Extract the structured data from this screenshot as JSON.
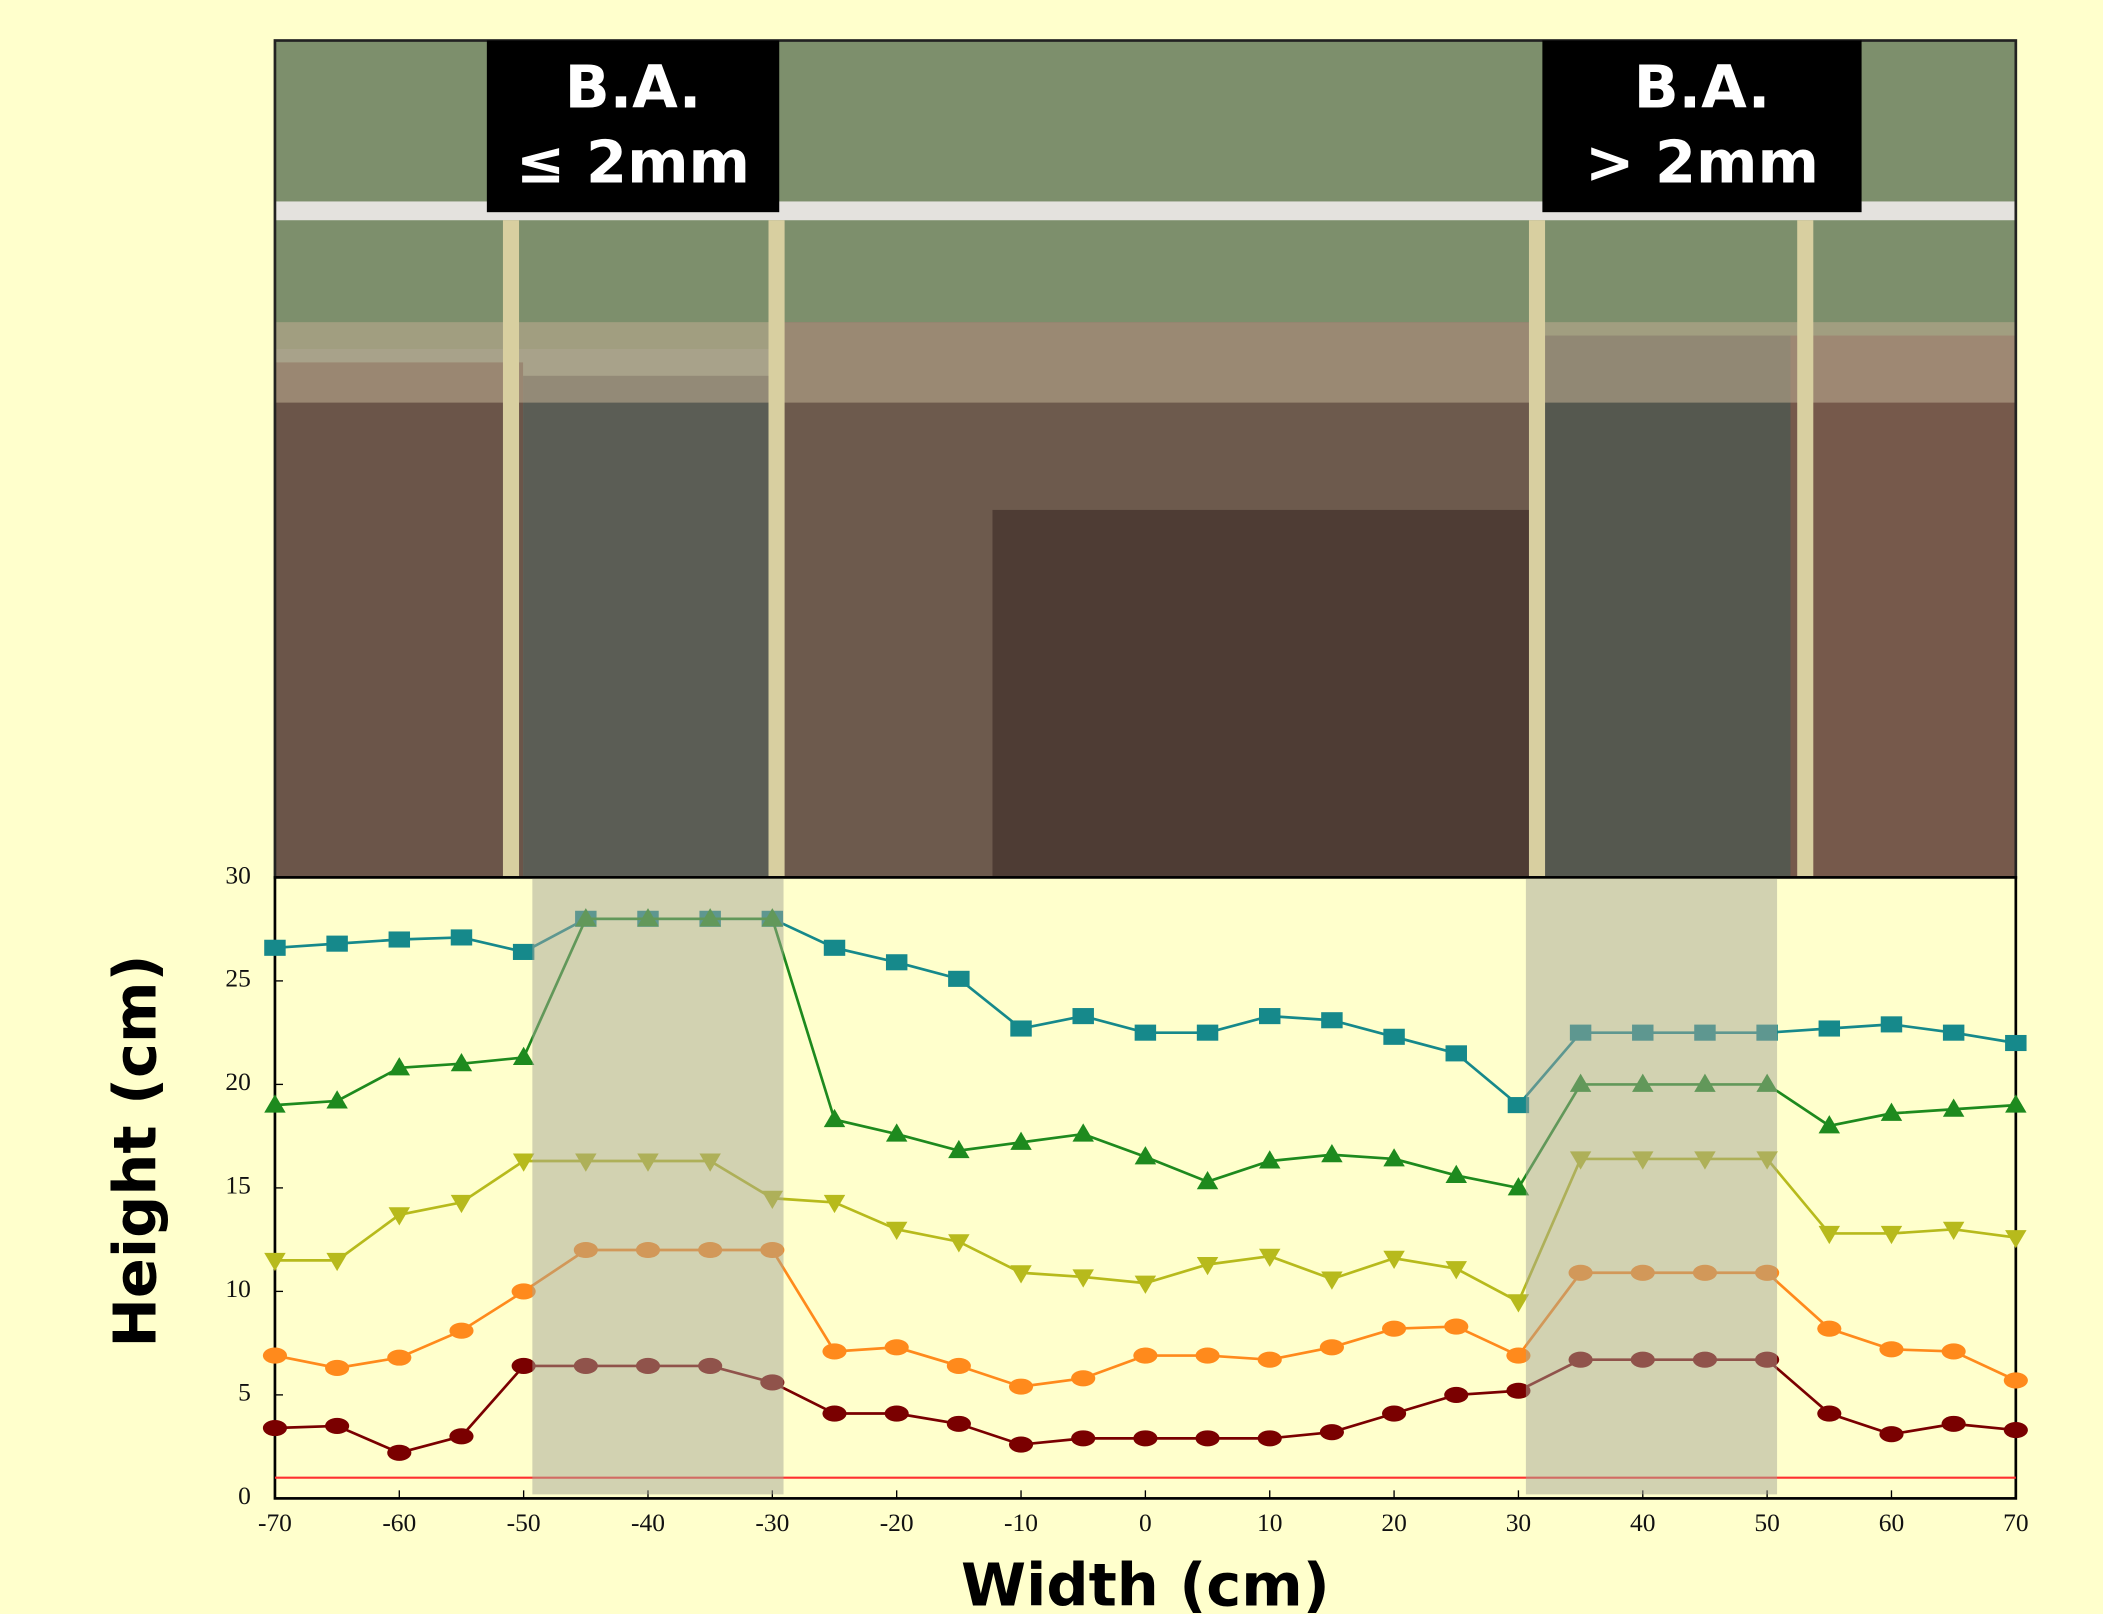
{
  "chart_data": {
    "type": "line",
    "annotations": [
      [
        "B.A.",
        "≤  2mm"
      ],
      [
        "B.A.",
        ">  2mm"
      ]
    ],
    "xlabel": "Width (cm)",
    "ylabel": "Height (cm)",
    "x": [
      -70,
      -65,
      -60,
      -55,
      -50,
      -45,
      -40,
      -35,
      -30,
      -25,
      -20,
      -15,
      -10,
      -5,
      0,
      5,
      10,
      15,
      20,
      25,
      30,
      35,
      40,
      45,
      50,
      55,
      60,
      65,
      70
    ],
    "series": [
      {
        "color": "#16898b",
        "marker": "square",
        "values": [
          26.6,
          26.8,
          27.0,
          27.1,
          26.4,
          28,
          28,
          28,
          28,
          26.6,
          25.9,
          25.1,
          22.7,
          23.3,
          22.5,
          22.5,
          23.3,
          23.1,
          22.3,
          21.5,
          19.0,
          22.5,
          22.5,
          22.5,
          22.5,
          22.7,
          22.9,
          22.5,
          22.0
        ]
      },
      {
        "color": "#1e8a1e",
        "marker": "triangle",
        "values": [
          19.0,
          19.2,
          20.8,
          21.0,
          21.3,
          28,
          28,
          28,
          28,
          18.3,
          17.6,
          16.8,
          17.2,
          17.6,
          16.5,
          15.3,
          16.3,
          16.6,
          16.4,
          15.6,
          15.0,
          20,
          20,
          20,
          20,
          18.0,
          18.6,
          18.8,
          19.0
        ]
      },
      {
        "color": "#b7ba1c",
        "marker": "triangle-down",
        "values": [
          11.5,
          11.5,
          13.7,
          14.3,
          16.3,
          16.3,
          16.3,
          16.3,
          14.5,
          14.3,
          13.0,
          12.4,
          10.9,
          10.7,
          10.4,
          11.3,
          11.7,
          10.6,
          11.6,
          11.1,
          9.5,
          16.4,
          16.4,
          16.4,
          16.4,
          12.8,
          12.8,
          13.0,
          12.6
        ]
      },
      {
        "color": "#ff8a1c",
        "marker": "circle",
        "values": [
          6.9,
          6.3,
          6.8,
          8.1,
          10.0,
          12,
          12,
          12,
          12,
          7.1,
          7.3,
          6.4,
          5.4,
          5.8,
          6.9,
          6.9,
          6.7,
          7.3,
          8.2,
          8.3,
          6.9,
          10.9,
          10.9,
          10.9,
          10.9,
          8.2,
          7.2,
          7.1,
          5.7
        ]
      },
      {
        "color": "#7a0000",
        "marker": "circle",
        "values": [
          3.4,
          3.5,
          2.2,
          3.0,
          6.4,
          6.4,
          6.4,
          6.4,
          5.6,
          4.1,
          4.1,
          3.6,
          2.6,
          2.9,
          2.9,
          2.9,
          2.9,
          3.2,
          4.1,
          5.0,
          5.2,
          6.7,
          6.7,
          6.7,
          6.7,
          4.1,
          3.1,
          3.6,
          3.3
        ]
      }
    ],
    "shaded_regions": [
      [
        -49.3,
        -29.1
      ],
      [
        30.6,
        50.8
      ]
    ],
    "reference_line": {
      "value": 1,
      "color": "#ff3030"
    },
    "xlim": [
      -70,
      70
    ],
    "xticks": [
      -70,
      -60,
      -50,
      -40,
      -30,
      -20,
      -10,
      0,
      10,
      20,
      30,
      40,
      50,
      60,
      70
    ],
    "ylim": [
      0,
      30
    ],
    "yticks": [
      0,
      5,
      10,
      15,
      20,
      25,
      30
    ]
  }
}
